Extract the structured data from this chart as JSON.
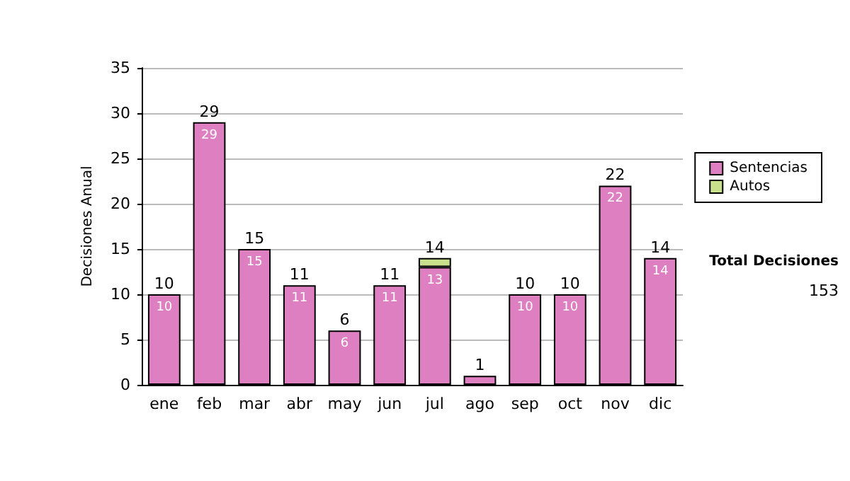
{
  "chart_data": {
    "type": "bar",
    "ylabel": "Decisiones Anual",
    "categories": [
      "ene",
      "feb",
      "mar",
      "abr",
      "may",
      "jun",
      "jul",
      "ago",
      "sep",
      "oct",
      "nov",
      "dic"
    ],
    "series": [
      {
        "name": "Sentencias",
        "color": "#dd7fc0",
        "values": [
          10,
          29,
          15,
          11,
          6,
          11,
          13,
          1,
          10,
          10,
          22,
          14
        ],
        "value_labels": [
          "10",
          "29",
          "15",
          "11",
          "6",
          "11",
          "13",
          null,
          "10",
          "10",
          "22",
          "14"
        ]
      },
      {
        "name": "Autos",
        "color": "#c8e08c",
        "values": [
          null,
          null,
          null,
          null,
          null,
          null,
          1,
          null,
          null,
          null,
          null,
          null
        ]
      }
    ],
    "stacked": true,
    "totals": [
      "10",
      "29",
      "15",
      "11",
      "6",
      "11",
      "14",
      "1",
      "10",
      "10",
      "22",
      "14"
    ],
    "ylim": [
      0,
      35
    ],
    "yticks": [
      0,
      5,
      10,
      15,
      20,
      25,
      30,
      35
    ],
    "grid": "y",
    "legend": "right",
    "annotations": [
      "Total Decisiones",
      "153"
    ]
  }
}
